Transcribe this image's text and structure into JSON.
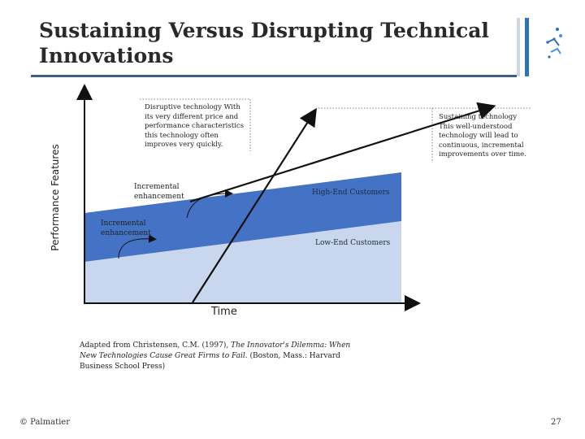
{
  "slide": {
    "title": "Sustaining Versus Disrupting Technical Innovations",
    "page_number": "27",
    "copyright": "© Palmatier"
  },
  "diagram": {
    "y_axis_label": "Performance Features",
    "x_axis_label": "Time",
    "disruptive_note": "Disruptive technology With its very different price and performance characteristics this technology often improves very quickly.",
    "sustaining_note": "Sustaining technology This well-understood technology will lead to continuous, incremental improvements over time.",
    "incremental_label_1": "Incremental enhancement",
    "incremental_label_2": "Incremental enhancement",
    "high_end_label": "High-End Customers",
    "low_end_label": "Low-End Customers",
    "colors": {
      "high_band": "#4472c4",
      "low_band": "#c9d7ee",
      "axis": "#111111",
      "line": "#111111"
    }
  },
  "caption": {
    "prefix": "Adapted from Christensen, C.M. (1997), ",
    "italic": "The Innovator's Dilemma: When New Technologies Cause Great Firms to Fail",
    "suffix": ". (Boston, Mass.: Harvard Business School Press)"
  }
}
